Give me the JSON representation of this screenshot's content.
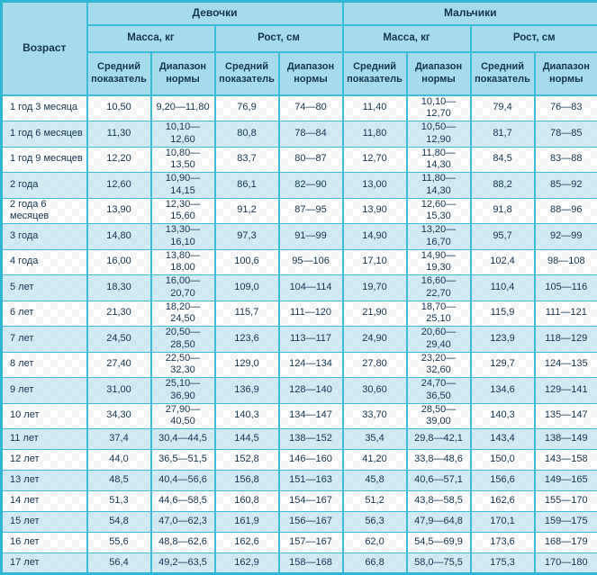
{
  "table": {
    "header": {
      "age": "Возраст",
      "girls": "Девочки",
      "boys": "Мальчики",
      "mass": "Масса, кг",
      "height": "Рост, см",
      "avg": "Средний показатель",
      "range": "Диапазон нормы"
    }
  },
  "rows": [
    [
      "1 год 3 месяца",
      "10,50",
      "9,20—11,80",
      "76,9",
      "74—80",
      "11,40",
      "10,10—12,70",
      "79,4",
      "76—83"
    ],
    [
      "1 год 6 месяцев",
      "11,30",
      "10,10—12,60",
      "80,8",
      "78—84",
      "11,80",
      "10,50—12,90",
      "81,7",
      "78—85"
    ],
    [
      "1 год 9 месяцев",
      "12,20",
      "10,80—13,50",
      "83,7",
      "80—87",
      "12,70",
      "11,80—14,30",
      "84,5",
      "83—88"
    ],
    [
      "2 года",
      "12,60",
      "10,90—14,15",
      "86,1",
      "82—90",
      "13,00",
      "11,80—14,30",
      "88,2",
      "85—92"
    ],
    [
      "2 года 6 месяцев",
      "13,90",
      "12,30—15,60",
      "91,2",
      "87—95",
      "13,90",
      "12,60—15,30",
      "91,8",
      "88—96"
    ],
    [
      "3 года",
      "14,80",
      "13,30—16,10",
      "97,3",
      "91—99",
      "14,90",
      "13,20—16,70",
      "95,7",
      "92—99"
    ],
    [
      "4 года",
      "16,00",
      "13,80—18,00",
      "100,6",
      "95—106",
      "17,10",
      "14,90—19,30",
      "102,4",
      "98—108"
    ],
    [
      "5 лет",
      "18,30",
      "16,00—20,70",
      "109,0",
      "104—114",
      "19,70",
      "16,60—22,70",
      "110,4",
      "105—116"
    ],
    [
      "6 лет",
      "21,30",
      "18,20—24,50",
      "115,7",
      "111—120",
      "21,90",
      "18,70—25,10",
      "115,9",
      "111—121"
    ],
    [
      "7 лет",
      "24,50",
      "20,50—28,50",
      "123,6",
      "113—117",
      "24,90",
      "20,60—29,40",
      "123,9",
      "118—129"
    ],
    [
      "8 лет",
      "27,40",
      "22,50—32,30",
      "129,0",
      "124—134",
      "27,80",
      "23,20—32,60",
      "129,7",
      "124—135"
    ],
    [
      "9 лет",
      "31,00",
      "25,10—36,90",
      "136,9",
      "128—140",
      "30,60",
      "24,70—36,50",
      "134,6",
      "129—141"
    ],
    [
      "10 лет",
      "34,30",
      "27,90—40,50",
      "140,3",
      "134—147",
      "33,70",
      "28,50—39,00",
      "140,3",
      "135—147"
    ],
    [
      "11 лет",
      "37,4",
      "30,4—44,5",
      "144,5",
      "138—152",
      "35,4",
      "29,8—42,1",
      "143,4",
      "138—149"
    ],
    [
      "12 лет",
      "44,0",
      "36,5—51,5",
      "152,8",
      "146—160",
      "41,20",
      "33,8—48,6",
      "150,0",
      "143—158"
    ],
    [
      "13 лет",
      "48,5",
      "40,4—56,6",
      "156,8",
      "151—163",
      "45,8",
      "40,6—57,1",
      "156,6",
      "149—165"
    ],
    [
      "14 лет",
      "51,3",
      "44,6—58,5",
      "160,8",
      "154—167",
      "51,2",
      "43,8—58,5",
      "162,6",
      "155—170"
    ],
    [
      "15 лет",
      "54,8",
      "47,0—62,3",
      "161,9",
      "156—167",
      "56,3",
      "47,9—64,8",
      "170,1",
      "159—175"
    ],
    [
      "16 лет",
      "55,6",
      "48,8—62,6",
      "162,6",
      "157—167",
      "62,0",
      "54,5—69,9",
      "173,6",
      "168—179"
    ],
    [
      "17 лет",
      "56,4",
      "49,2—63,5",
      "162,9",
      "158—168",
      "66,8",
      "58,0—75,5",
      "175,3",
      "170—180"
    ]
  ],
  "colors": {
    "header_bg": "#a6dbeb",
    "alt_row_bg": "#c8e7f3",
    "border": "#3fbdd8",
    "text": "#16354e"
  }
}
